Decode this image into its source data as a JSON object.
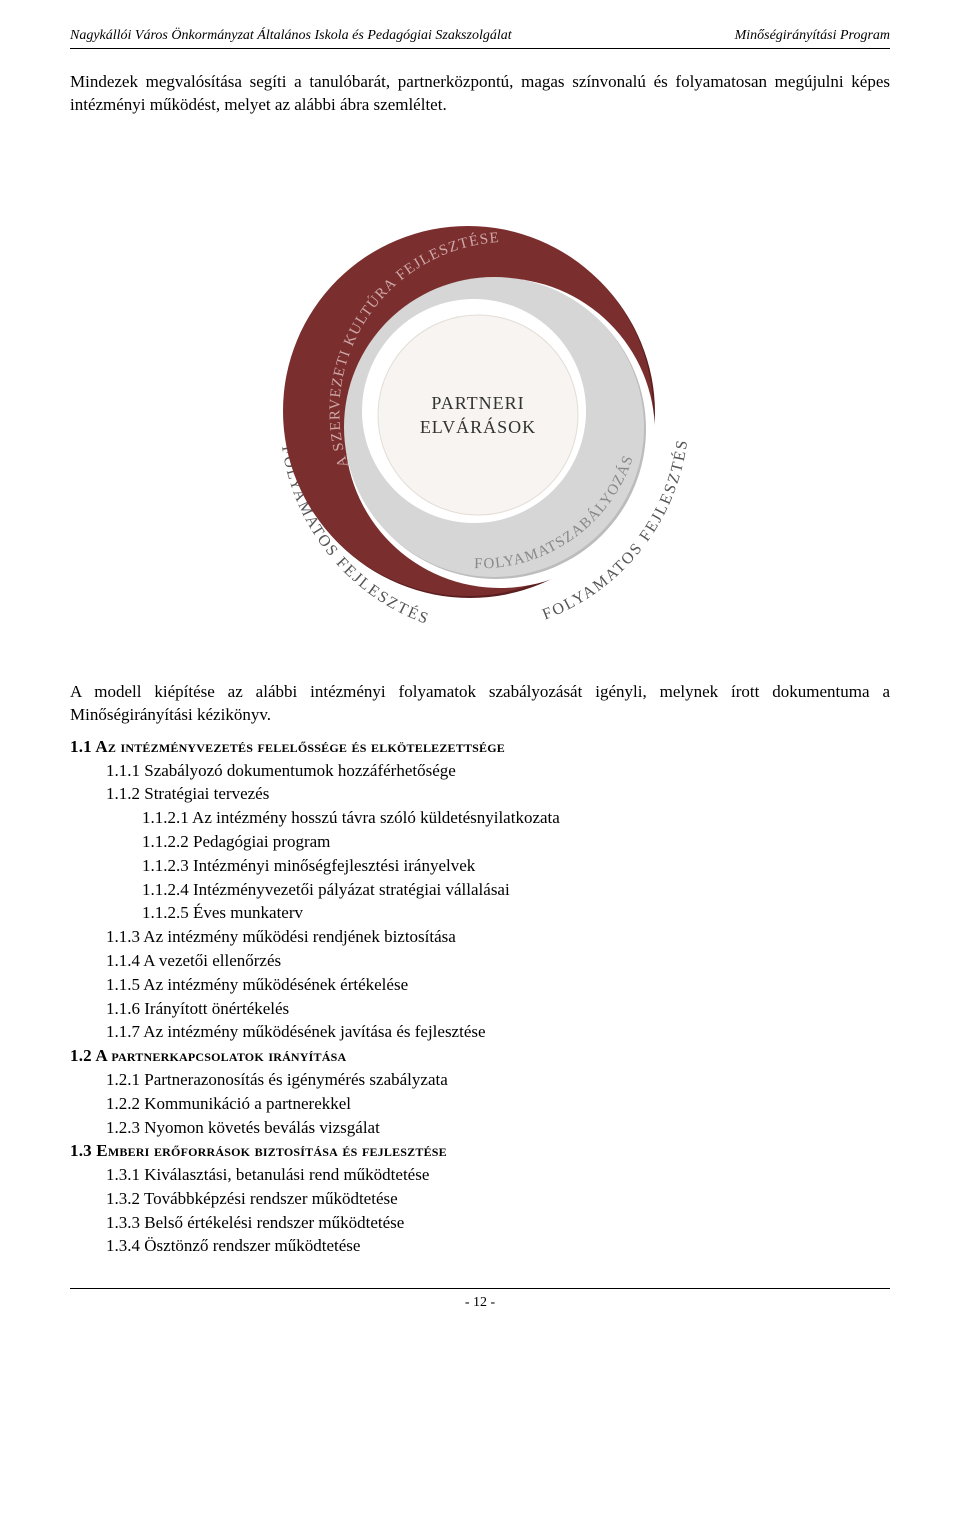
{
  "header": {
    "left": "Nagykállói Város Önkormányzat Általános Iskola és Pedagógiai Szakszolgálat",
    "right": "Minőségirányítási Program"
  },
  "intro": "Mindezek megvalósítása segíti a tanulóbarát, partnerközpontú, magas színvonalú és folyamatosan megújulni képes intézményi működést, melyet az alábbi ábra szemléltet.",
  "diagram": {
    "outer_top": "FOLYAMATOS FEJLESZTÉS",
    "outer_left": "FOLYAMATOS FEJLESZTÉS",
    "outer_right": "FOLYAMATOS FEJLESZTÉS",
    "ring1": "A SZERVEZETI KULTÚRA FEJLESZTÉSE",
    "ring2": "FOLYAMATSZABÁLYOZÁS",
    "center1": "PARTNERI",
    "center2": "ELVÁRÁSOK",
    "colors": {
      "outer_ring": "#7b2e2e",
      "outer_ring_shadow": "#5b1f1f",
      "inner_ring": "#d6d6d6",
      "inner_ring_shadow": "#bcbcbc",
      "center_bg": "#f7f4f1",
      "page_bg": "#ffffff",
      "arc_label": "#6a6a6a"
    }
  },
  "after_diagram": "A modell kiépítése az alábbi intézményi folyamatok szabályozását igényli, melynek írott dokumentuma a Minőségirányítási kézikönyv.",
  "outline": [
    {
      "level": 1,
      "bold": true,
      "smallcaps": true,
      "text": "1.1 Az intézményvezetés felelőssége és elkötelezettsége"
    },
    {
      "level": 2,
      "text": "1.1.1 Szabályozó dokumentumok hozzáférhetősége"
    },
    {
      "level": 2,
      "text": "1.1.2 Stratégiai tervezés"
    },
    {
      "level": 3,
      "text": "1.1.2.1 Az intézmény hosszú távra szóló küldetésnyilatkozata"
    },
    {
      "level": 3,
      "text": "1.1.2.2 Pedagógiai program"
    },
    {
      "level": 3,
      "text": "1.1.2.3 Intézményi minőségfejlesztési irányelvek"
    },
    {
      "level": 3,
      "text": "1.1.2.4 Intézményvezetői pályázat stratégiai vállalásai"
    },
    {
      "level": 3,
      "text": "1.1.2.5 Éves munkaterv"
    },
    {
      "level": 2,
      "text": "1.1.3 Az intézmény működési rendjének biztosítása"
    },
    {
      "level": 2,
      "text": "1.1.4 A vezetői ellenőrzés"
    },
    {
      "level": 2,
      "text": "1.1.5  Az intézmény működésének értékelése"
    },
    {
      "level": 2,
      "text": "1.1.6  Irányított önértékelés"
    },
    {
      "level": 2,
      "text": "1.1.7 Az intézmény működésének javítása és fejlesztése"
    },
    {
      "level": 1,
      "bold": true,
      "smallcaps": true,
      "text": "1.2 A partnerkapcsolatok irányítása"
    },
    {
      "level": 2,
      "text": "1.2.1 Partnerazonosítás és igénymérés szabályzata"
    },
    {
      "level": 2,
      "text": "1.2.2 Kommunikáció a partnerekkel"
    },
    {
      "level": 2,
      "text": "1.2.3 Nyomon követés beválás vizsgálat"
    },
    {
      "level": 1,
      "bold": true,
      "smallcaps": true,
      "text": "1.3 Emberi erőforrások biztosítása és fejlesztése"
    },
    {
      "level": 2,
      "text": "1.3.1 Kiválasztási, betanulási rend működtetése"
    },
    {
      "level": 2,
      "text": "1.3.2 Továbbképzési rendszer működtetése"
    },
    {
      "level": 2,
      "text": "1.3.3 Belső értékelési rendszer működtetése"
    },
    {
      "level": 2,
      "text": "1.3.4 Ösztönző rendszer működtetése"
    }
  ],
  "footer": "- 12 -"
}
